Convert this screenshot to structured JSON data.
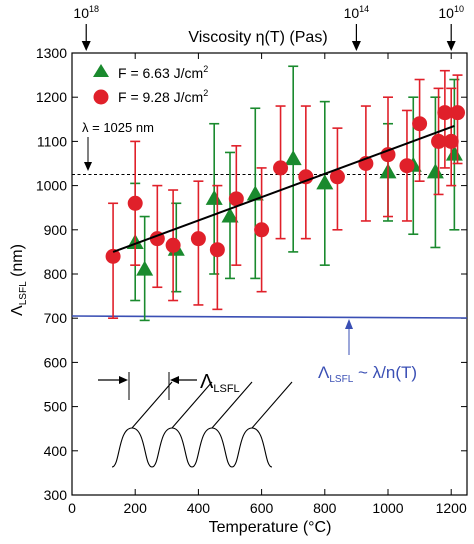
{
  "chart_data": {
    "type": "scatter",
    "xlabel": "Temperature (°C)",
    "ylabel_main": "Λ",
    "ylabel_sub": "LSFL",
    "ylabel_unit": " (nm)",
    "xlim": [
      0,
      1250
    ],
    "ylim": [
      300,
      1300
    ],
    "xticks": [
      0,
      200,
      400,
      600,
      800,
      1000,
      1200
    ],
    "yticks": [
      300,
      400,
      500,
      600,
      700,
      800,
      900,
      1000,
      1100,
      1200,
      1300
    ],
    "top_axis": {
      "title": "Viscosity η(T)   (Pas)",
      "markers": [
        {
          "at": 45,
          "base": "10",
          "exp": "18"
        },
        {
          "at": 900,
          "base": "10",
          "exp": "14"
        },
        {
          "at": 1200,
          "base": "10",
          "exp": "10"
        }
      ]
    },
    "series": [
      {
        "name": "F = 6.63 J/cm²",
        "name_base": "F = 6.63 J/cm",
        "name_sup": "2",
        "marker": "triangle",
        "color": "#1a8a2e",
        "points": [
          {
            "x": 200,
            "y": 870,
            "low": 740,
            "high": 1005
          },
          {
            "x": 230,
            "y": 810,
            "low": 695,
            "high": 930
          },
          {
            "x": 330,
            "y": 855,
            "low": 760,
            "high": 960
          },
          {
            "x": 450,
            "y": 970,
            "low": 800,
            "high": 1140
          },
          {
            "x": 500,
            "y": 930,
            "low": 790,
            "high": 1075
          },
          {
            "x": 580,
            "y": 980,
            "low": 790,
            "high": 1175
          },
          {
            "x": 700,
            "y": 1060,
            "low": 850,
            "high": 1270
          },
          {
            "x": 800,
            "y": 1005,
            "low": 820,
            "high": 1190
          },
          {
            "x": 1000,
            "y": 1030,
            "low": 920,
            "high": 1140
          },
          {
            "x": 1080,
            "y": 1045,
            "low": 890,
            "high": 1200
          },
          {
            "x": 1150,
            "y": 1030,
            "low": 860,
            "high": 1200
          },
          {
            "x": 1210,
            "y": 1070,
            "low": 900,
            "high": 1240
          }
        ]
      },
      {
        "name": "F = 9.28 J/cm²",
        "name_base": "F = 9.28 J/cm",
        "name_sup": "2",
        "marker": "circle",
        "color": "#e0202a",
        "points": [
          {
            "x": 130,
            "y": 840,
            "low": 700,
            "high": 960
          },
          {
            "x": 200,
            "y": 960,
            "low": 820,
            "high": 1100
          },
          {
            "x": 270,
            "y": 880,
            "low": 770,
            "high": 1000
          },
          {
            "x": 320,
            "y": 865,
            "low": 740,
            "high": 990
          },
          {
            "x": 400,
            "y": 880,
            "low": 730,
            "high": 1010
          },
          {
            "x": 460,
            "y": 855,
            "low": 720,
            "high": 1000
          },
          {
            "x": 520,
            "y": 970,
            "low": 820,
            "high": 1090
          },
          {
            "x": 600,
            "y": 900,
            "low": 760,
            "high": 1040
          },
          {
            "x": 660,
            "y": 1040,
            "low": 880,
            "high": 1180
          },
          {
            "x": 740,
            "y": 1020,
            "low": 880,
            "high": 1180
          },
          {
            "x": 840,
            "y": 1020,
            "low": 900,
            "high": 1130
          },
          {
            "x": 930,
            "y": 1050,
            "low": 920,
            "high": 1180
          },
          {
            "x": 1000,
            "y": 1070,
            "low": 930,
            "high": 1200
          },
          {
            "x": 1060,
            "y": 1045,
            "low": 920,
            "high": 1170
          },
          {
            "x": 1100,
            "y": 1140,
            "low": 1010,
            "high": 1240
          },
          {
            "x": 1160,
            "y": 1100,
            "low": 980,
            "high": 1220
          },
          {
            "x": 1180,
            "y": 1165,
            "low": 1040,
            "high": 1260
          },
          {
            "x": 1200,
            "y": 1100,
            "low": 1000,
            "high": 1220
          },
          {
            "x": 1220,
            "y": 1165,
            "low": 1050,
            "high": 1250
          }
        ]
      }
    ],
    "fit_line": {
      "x": [
        130,
        1210
      ],
      "y": [
        850,
        1135
      ],
      "color": "#000000"
    },
    "reference_line": {
      "y": 1025,
      "label": "λ = 1025 nm",
      "style": "dashed"
    },
    "model_line": {
      "y": 705,
      "color": "#3a4fb4",
      "label_main": "Λ",
      "label_sub": "LSFL",
      "label_rest": " ~ λ/n(T)"
    },
    "inset": {
      "label_main": "Λ",
      "label_sub": "LSFL",
      "ripples": 4
    }
  }
}
